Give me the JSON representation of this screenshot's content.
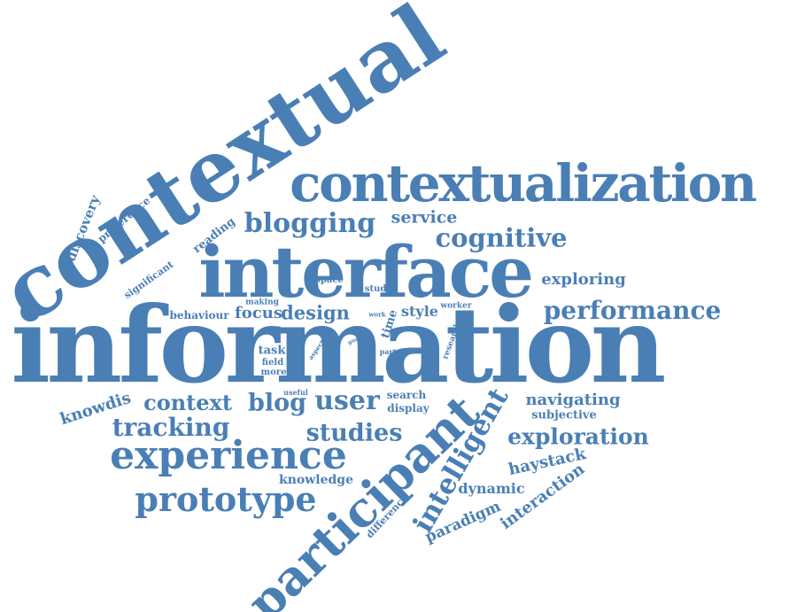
{
  "color": "#4a7fb5",
  "words": [
    "contextual",
    "contextualization",
    "information",
    "interface",
    "participant",
    "experience",
    "blogging",
    "service",
    "cognitive",
    "exploring",
    "performance",
    "design",
    "focus",
    "style",
    "behaviour",
    "making",
    "space",
    "study",
    "work",
    "worker",
    "time",
    "research",
    "aspect",
    "goal",
    "part",
    "task",
    "field",
    "more",
    "useful",
    "search",
    "display",
    "knowdis",
    "context",
    "blog",
    "user",
    "navigating",
    "subjective",
    "tracking",
    "studies",
    "exploration",
    "intelligent",
    "haystack",
    "knowledge",
    "dynamic",
    "interaction",
    "prototype",
    "difference",
    "paradigm",
    "discovery",
    "preference",
    "reading",
    "significant"
  ]
}
